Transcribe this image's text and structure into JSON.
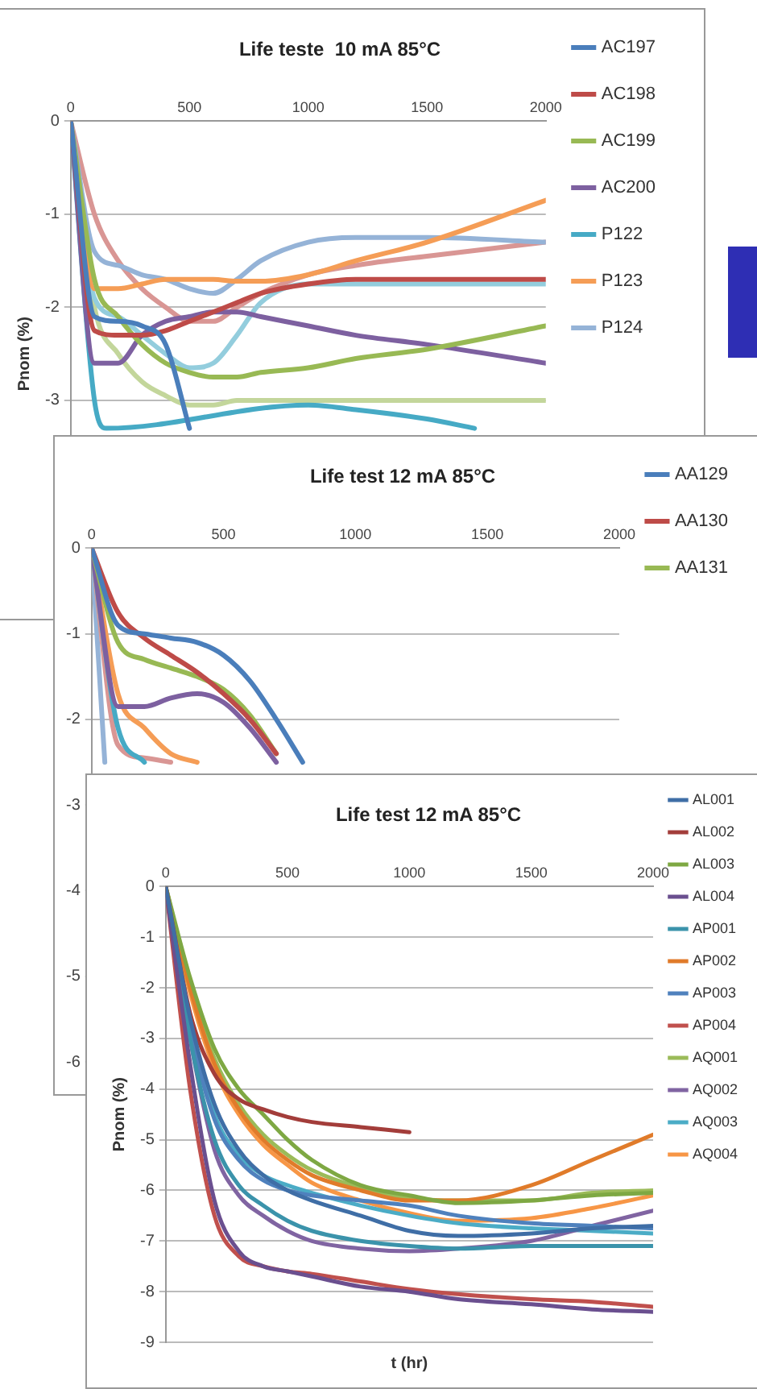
{
  "chart_data": [
    {
      "type": "line",
      "title": "Life teste  10 mA 85°C",
      "ylabel": "Pnom (%)",
      "xlim": [
        0,
        2000
      ],
      "xticks": [
        0,
        500,
        1000,
        1500,
        2000
      ],
      "ylim": [
        -5,
        0
      ],
      "yticks": [
        0,
        -1,
        -2,
        -3
      ],
      "grid": "y",
      "legend": "right",
      "marker": "none",
      "line_style": "solid",
      "series": [
        {
          "name": "AC197",
          "color": "#4a7ebb",
          "x": [
            0,
            100,
            200,
            300,
            400,
            500
          ],
          "values": [
            0,
            -2.1,
            -2.15,
            -2.2,
            -2.4,
            -3.3
          ]
        },
        {
          "name": "AC198",
          "color": "#be4b48",
          "x": [
            0,
            100,
            200,
            300,
            400,
            500,
            600,
            700,
            800,
            1000,
            1200,
            1500,
            2000
          ],
          "values": [
            0,
            -2.25,
            -2.3,
            -2.3,
            -2.25,
            -2.15,
            -2.05,
            -1.95,
            -1.85,
            -1.75,
            -1.7,
            -1.7,
            -1.7
          ]
        },
        {
          "name": "AC199",
          "color": "#98b954",
          "x": [
            0,
            100,
            200,
            300,
            400,
            500,
            600,
            700,
            800,
            1000,
            1200,
            1500,
            2000
          ],
          "values": [
            0,
            -1.7,
            -2.1,
            -2.4,
            -2.6,
            -2.7,
            -2.75,
            -2.75,
            -2.7,
            -2.65,
            -2.55,
            -2.45,
            -2.2
          ]
        },
        {
          "name": "AC200",
          "color": "#7d60a0",
          "x": [
            0,
            100,
            200,
            300,
            400,
            500,
            600,
            700,
            800,
            1000,
            1200,
            1500,
            2000
          ],
          "values": [
            0,
            -2.6,
            -2.6,
            -2.3,
            -2.15,
            -2.1,
            -2.05,
            -2.05,
            -2.1,
            -2.2,
            -2.3,
            -2.4,
            -2.6
          ]
        },
        {
          "name": "P122",
          "color": "#46aac5",
          "x": [
            0,
            100,
            150,
            1000,
            1200,
            1500,
            1700
          ],
          "values": [
            0,
            -3.0,
            -3.3,
            -3.05,
            -3.1,
            -3.2,
            -3.3
          ]
        },
        {
          "name": "P123",
          "color": "#f59d56",
          "x": [
            0,
            100,
            200,
            300,
            400,
            500,
            600,
            700,
            800,
            1000,
            1200,
            1500,
            2000
          ],
          "values": [
            0,
            -1.8,
            -1.8,
            -1.75,
            -1.7,
            -1.7,
            -1.7,
            -1.72,
            -1.72,
            -1.65,
            -1.5,
            -1.3,
            -0.85
          ]
        },
        {
          "name": "P124",
          "color": "#95b3d7",
          "x": [
            0,
            100,
            200,
            300,
            400,
            500,
            600,
            700,
            800,
            1000,
            1200,
            1500,
            2000
          ],
          "values": [
            0,
            -1.4,
            -1.55,
            -1.65,
            -1.7,
            -1.8,
            -1.85,
            -1.7,
            -1.5,
            -1.3,
            -1.25,
            -1.25,
            -1.3
          ]
        },
        {
          "color": "#d99694",
          "x": [
            0,
            100,
            200,
            300,
            400,
            500,
            600,
            700,
            800,
            1000,
            1200,
            1500,
            2000
          ],
          "values": [
            0,
            -1.0,
            -1.5,
            -1.8,
            -2.0,
            -2.15,
            -2.15,
            -2.0,
            -1.85,
            -1.65,
            -1.55,
            -1.45,
            -1.3
          ]
        },
        {
          "color": "#93cddd",
          "x": [
            0,
            100,
            200,
            300,
            400,
            500,
            600,
            700,
            800,
            1000,
            1200,
            1500,
            2000
          ],
          "values": [
            0,
            -1.9,
            -2.1,
            -2.3,
            -2.5,
            -2.65,
            -2.6,
            -2.3,
            -1.95,
            -1.75,
            -1.75,
            -1.75,
            -1.75
          ]
        },
        {
          "color": "#c3d69b",
          "x": [
            0,
            100,
            200,
            300,
            400,
            500,
            600,
            700,
            800,
            1000,
            1200,
            1500,
            2000
          ],
          "values": [
            0,
            -2.0,
            -2.5,
            -2.8,
            -2.95,
            -3.05,
            -3.05,
            -3.0,
            -3.0,
            -3.0,
            -3.0,
            -3.0,
            -3.0
          ]
        }
      ]
    },
    {
      "type": "line",
      "title": "Life test 12 mA 85°C",
      "xlim": [
        0,
        2000
      ],
      "xticks": [
        0,
        500,
        1000,
        1500,
        2000
      ],
      "ylim": [
        -6,
        0
      ],
      "yticks": [
        0,
        -1,
        -2,
        -3,
        -4,
        -5,
        -6
      ],
      "grid": "y",
      "legend": "right",
      "marker": "none",
      "line_style": "solid",
      "series": [
        {
          "name": "AA129",
          "color": "#4a7ebb",
          "x": [
            0,
            100,
            200,
            300,
            400,
            500,
            600,
            700,
            800
          ],
          "values": [
            0,
            -0.9,
            -1.0,
            -1.05,
            -1.1,
            -1.25,
            -1.55,
            -2.0,
            -2.5
          ]
        },
        {
          "name": "AA130",
          "color": "#be4b48",
          "x": [
            0,
            100,
            200,
            300,
            400,
            500,
            600,
            700
          ],
          "values": [
            0,
            -0.75,
            -1.05,
            -1.25,
            -1.45,
            -1.7,
            -2.0,
            -2.4
          ]
        },
        {
          "name": "AA131",
          "color": "#98b954",
          "x": [
            0,
            100,
            200,
            300,
            400,
            500,
            600,
            700
          ],
          "values": [
            0,
            -1.1,
            -1.3,
            -1.4,
            -1.5,
            -1.65,
            -1.95,
            -2.4
          ]
        },
        {
          "color": "#7d60a0",
          "x": [
            0,
            100,
            200,
            300,
            400,
            500,
            600,
            700
          ],
          "values": [
            0,
            -1.85,
            -1.85,
            -1.75,
            -1.7,
            -1.8,
            -2.1,
            -2.5
          ]
        },
        {
          "color": "#f59d56",
          "x": [
            0,
            100,
            200,
            300,
            400
          ],
          "values": [
            0,
            -1.7,
            -2.1,
            -2.4,
            -2.5
          ]
        },
        {
          "color": "#46aac5",
          "x": [
            0,
            100,
            200
          ],
          "values": [
            0,
            -2.1,
            -2.5
          ]
        },
        {
          "color": "#d99694",
          "x": [
            0,
            100,
            200,
            300
          ],
          "values": [
            0,
            -2.3,
            -2.45,
            -2.5
          ]
        },
        {
          "color": "#95b3d7",
          "x": [
            0,
            50
          ],
          "values": [
            0,
            -2.5
          ]
        }
      ]
    },
    {
      "type": "line",
      "title": "Life test 12 mA 85°C",
      "xlabel": "t (hr)",
      "ylabel": "Pnom (%)",
      "xlim": [
        0,
        2000
      ],
      "xticks": [
        0,
        500,
        1000,
        1500,
        2000
      ],
      "ylim": [
        -9,
        0
      ],
      "yticks": [
        0,
        -1,
        -2,
        -3,
        -4,
        -5,
        -6,
        -7,
        -8,
        -9
      ],
      "grid": "y",
      "legend": "right",
      "marker": "none",
      "line_style": "solid",
      "series": [
        {
          "name": "AL001",
          "color": "#3f6ea6",
          "x": [
            0,
            100,
            200,
            300,
            400,
            500,
            600,
            800,
            1000,
            1200,
            1500,
            1750,
            2000
          ],
          "values": [
            0,
            -2.6,
            -4.3,
            -5.2,
            -5.7,
            -6.0,
            -6.2,
            -6.5,
            -6.8,
            -6.9,
            -6.85,
            -6.75,
            -6.7
          ]
        },
        {
          "name": "AL002",
          "color": "#a33d3a",
          "x": [
            0,
            100,
            200,
            300,
            400,
            500,
            600,
            800,
            1000
          ],
          "values": [
            0,
            -2.5,
            -3.7,
            -4.2,
            -4.4,
            -4.55,
            -4.65,
            -4.75,
            -4.85
          ]
        },
        {
          "name": "AL003",
          "color": "#7ea843",
          "x": [
            0,
            100,
            200,
            300,
            400,
            500,
            600,
            800,
            1000,
            1200,
            1500,
            1750,
            2000
          ],
          "values": [
            0,
            -1.8,
            -3.2,
            -4.0,
            -4.5,
            -5.0,
            -5.4,
            -5.9,
            -6.1,
            -6.25,
            -6.2,
            -6.1,
            -6.05
          ]
        },
        {
          "name": "AL004",
          "color": "#6a4f8f",
          "x": [
            0,
            100,
            200,
            300,
            400,
            500,
            600,
            800,
            1000,
            1200,
            1500,
            1750,
            2000
          ],
          "values": [
            0,
            -3.5,
            -6.2,
            -7.2,
            -7.5,
            -7.6,
            -7.7,
            -7.9,
            -8.0,
            -8.15,
            -8.25,
            -8.35,
            -8.4
          ]
        },
        {
          "name": "AP001",
          "color": "#3b93ab",
          "x": [
            0,
            100,
            200,
            300,
            400,
            500,
            600,
            800,
            1000,
            1200,
            1500,
            1750,
            2000
          ],
          "values": [
            0,
            -3,
            -5.0,
            -5.9,
            -6.3,
            -6.6,
            -6.8,
            -7.0,
            -7.1,
            -7.15,
            -7.1,
            -7.1,
            -7.1
          ]
        },
        {
          "name": "AP002",
          "color": "#e07b2a",
          "x": [
            0,
            100,
            200,
            300,
            400,
            500,
            600,
            800,
            1000,
            1200,
            1500,
            1750,
            2000
          ],
          "values": [
            0,
            -2,
            -3.5,
            -4.4,
            -5,
            -5.4,
            -5.7,
            -6.0,
            -6.2,
            -6.2,
            -5.9,
            -5.4,
            -4.9
          ]
        },
        {
          "name": "AP003",
          "color": "#4f81bd",
          "x": [
            0,
            100,
            200,
            300,
            400,
            500,
            600,
            800,
            1000,
            1200,
            1500,
            1750,
            2000
          ],
          "values": [
            0,
            -2.8,
            -4.6,
            -5.4,
            -5.8,
            -6.0,
            -6.1,
            -6.2,
            -6.3,
            -6.5,
            -6.65,
            -6.7,
            -6.75
          ]
        },
        {
          "name": "AP004",
          "color": "#c0504d",
          "x": [
            0,
            100,
            200,
            300,
            400,
            500,
            600,
            800,
            1000,
            1200,
            1500,
            1750,
            2000
          ],
          "values": [
            0,
            -4,
            -6.5,
            -7.3,
            -7.5,
            -7.6,
            -7.65,
            -7.8,
            -7.95,
            -8.05,
            -8.15,
            -8.2,
            -8.3
          ]
        },
        {
          "name": "AQ001",
          "color": "#9bbb59",
          "x": [
            0,
            100,
            200,
            300,
            400,
            500,
            600,
            800,
            1000,
            1200,
            1500,
            1750,
            2000
          ],
          "values": [
            0,
            -2,
            -3.4,
            -4.3,
            -4.9,
            -5.3,
            -5.6,
            -5.95,
            -6.15,
            -6.2,
            -6.2,
            -6.05,
            -6.0
          ]
        },
        {
          "name": "AQ002",
          "color": "#8064a2",
          "x": [
            0,
            100,
            200,
            300,
            400,
            500,
            600,
            800,
            1000,
            1200,
            1500,
            1750,
            2000
          ],
          "values": [
            0,
            -3,
            -5.2,
            -6.1,
            -6.5,
            -6.8,
            -7.0,
            -7.15,
            -7.2,
            -7.15,
            -7.0,
            -6.7,
            -6.4
          ]
        },
        {
          "name": "AQ003",
          "color": "#4bacc6",
          "x": [
            0,
            100,
            200,
            300,
            400,
            500,
            600,
            800,
            1000,
            1200,
            1500,
            1750,
            2000
          ],
          "values": [
            0,
            -2.6,
            -4.5,
            -5.3,
            -5.7,
            -5.9,
            -6.05,
            -6.3,
            -6.5,
            -6.65,
            -6.75,
            -6.8,
            -6.85
          ]
        },
        {
          "name": "AQ004",
          "color": "#f79646",
          "x": [
            0,
            100,
            200,
            300,
            400,
            500,
            600,
            800,
            1000,
            1200,
            1500,
            1750,
            2000
          ],
          "values": [
            0,
            -2.1,
            -3.6,
            -4.5,
            -5.1,
            -5.5,
            -5.85,
            -6.2,
            -6.45,
            -6.6,
            -6.55,
            -6.35,
            -6.1
          ]
        }
      ]
    }
  ]
}
